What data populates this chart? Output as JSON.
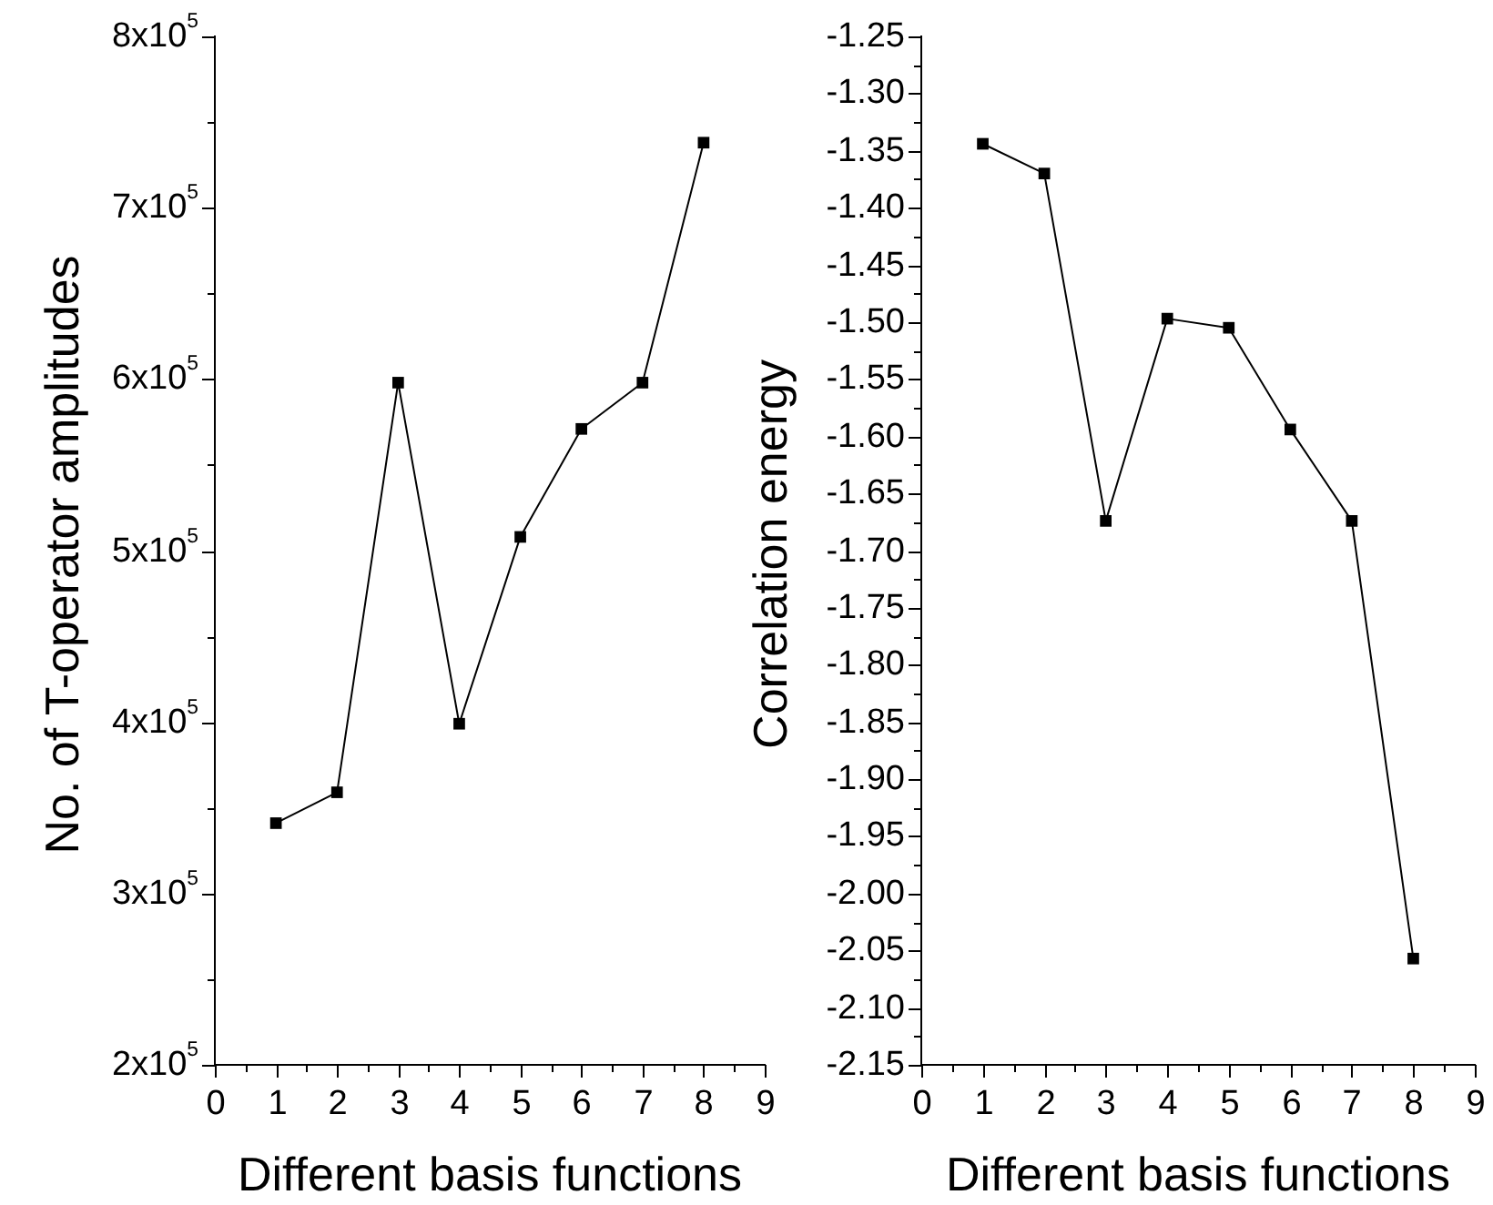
{
  "chart_data": [
    {
      "type": "line",
      "xlabel": "Different basis functions",
      "ylabel": "No. of T-operator amplitudes",
      "x": [
        1,
        2,
        3,
        4,
        5,
        6,
        7,
        8
      ],
      "series": [
        {
          "color": "#000000",
          "values": [
            341000,
            359000,
            598000,
            399000,
            508000,
            571000,
            598000,
            738000
          ]
        }
      ],
      "xlim": [
        0,
        9
      ],
      "xticks": [
        0,
        {
          "value": 0.5,
          "label": null
        },
        1,
        {
          "value": 1.5,
          "label": null
        },
        2,
        {
          "value": 2.5,
          "label": null
        },
        3,
        {
          "value": 3.5,
          "label": null
        },
        4,
        {
          "value": 4.5,
          "label": null
        },
        5,
        {
          "value": 5.5,
          "label": null
        },
        6,
        {
          "value": 6.5,
          "label": null
        },
        7,
        {
          "value": 7.5,
          "label": null
        },
        8,
        {
          "value": 8.5,
          "label": null
        },
        9
      ],
      "ylim": [
        200000,
        800000
      ],
      "yticks": [
        {
          "value": 200000,
          "label": "2x10$^{5}$"
        },
        {
          "value": 250000,
          "label": null
        },
        {
          "value": 300000,
          "label": "3x10$^{5}$"
        },
        {
          "value": 350000,
          "label": null
        },
        {
          "value": 400000,
          "label": "4x10$^{5}$"
        },
        {
          "value": 450000,
          "label": null
        },
        {
          "value": 500000,
          "label": "5x10$^{5}$"
        },
        {
          "value": 550000,
          "label": null
        },
        {
          "value": 600000,
          "label": "6x10$^{5}$"
        },
        {
          "value": 650000,
          "label": null
        },
        {
          "value": 700000,
          "label": "7x10$^{5}$"
        },
        {
          "value": 750000,
          "label": null
        },
        {
          "value": 800000,
          "label": "8x10$^{5}$"
        }
      ],
      "marker": "square",
      "line_style": "solid",
      "grid": false,
      "legend": false
    },
    {
      "type": "line",
      "xlabel": "Different basis functions",
      "ylabel": "Correlation energy",
      "x": [
        1,
        2,
        3,
        4,
        5,
        6,
        7,
        8
      ],
      "series": [
        {
          "color": "#000000",
          "values": [
            -1.344,
            -1.37,
            -1.674,
            -1.497,
            -1.505,
            -1.594,
            -1.674,
            -2.057
          ]
        }
      ],
      "xlim": [
        0,
        9
      ],
      "xticks": [
        0,
        {
          "value": 0.5,
          "label": null
        },
        1,
        {
          "value": 1.5,
          "label": null
        },
        2,
        {
          "value": 2.5,
          "label": null
        },
        3,
        {
          "value": 3.5,
          "label": null
        },
        4,
        {
          "value": 4.5,
          "label": null
        },
        5,
        {
          "value": 5.5,
          "label": null
        },
        6,
        {
          "value": 6.5,
          "label": null
        },
        7,
        {
          "value": 7.5,
          "label": null
        },
        8,
        {
          "value": 8.5,
          "label": null
        },
        9
      ],
      "ylim": [
        -2.15,
        -1.25
      ],
      "yticks": [
        {
          "value": -2.15,
          "label": "-2.15"
        },
        {
          "value": -2.125,
          "label": null
        },
        {
          "value": -2.1,
          "label": "-2.10"
        },
        {
          "value": -2.075,
          "label": null
        },
        {
          "value": -2.05,
          "label": "-2.05"
        },
        {
          "value": -2.025,
          "label": null
        },
        {
          "value": -2.0,
          "label": "-2.00"
        },
        {
          "value": -1.975,
          "label": null
        },
        {
          "value": -1.95,
          "label": "-1.95"
        },
        {
          "value": -1.925,
          "label": null
        },
        {
          "value": -1.9,
          "label": "-1.90"
        },
        {
          "value": -1.875,
          "label": null
        },
        {
          "value": -1.85,
          "label": "-1.85"
        },
        {
          "value": -1.825,
          "label": null
        },
        {
          "value": -1.8,
          "label": "-1.80"
        },
        {
          "value": -1.775,
          "label": null
        },
        {
          "value": -1.75,
          "label": "-1.75"
        },
        {
          "value": -1.725,
          "label": null
        },
        {
          "value": -1.7,
          "label": "-1.70"
        },
        {
          "value": -1.675,
          "label": null
        },
        {
          "value": -1.65,
          "label": "-1.65"
        },
        {
          "value": -1.625,
          "label": null
        },
        {
          "value": -1.6,
          "label": "-1.60"
        },
        {
          "value": -1.575,
          "label": null
        },
        {
          "value": -1.55,
          "label": "-1.55"
        },
        {
          "value": -1.525,
          "label": null
        },
        {
          "value": -1.5,
          "label": "-1.50"
        },
        {
          "value": -1.475,
          "label": null
        },
        {
          "value": -1.45,
          "label": "-1.45"
        },
        {
          "value": -1.425,
          "label": null
        },
        {
          "value": -1.4,
          "label": "-1.40"
        },
        {
          "value": -1.375,
          "label": null
        },
        {
          "value": -1.35,
          "label": "-1.35"
        },
        {
          "value": -1.325,
          "label": null
        },
        {
          "value": -1.3,
          "label": "-1.30"
        },
        {
          "value": -1.275,
          "label": null
        },
        {
          "value": -1.25,
          "label": "-1.25"
        }
      ],
      "marker": "square",
      "line_style": "solid",
      "grid": false,
      "legend": false
    }
  ]
}
